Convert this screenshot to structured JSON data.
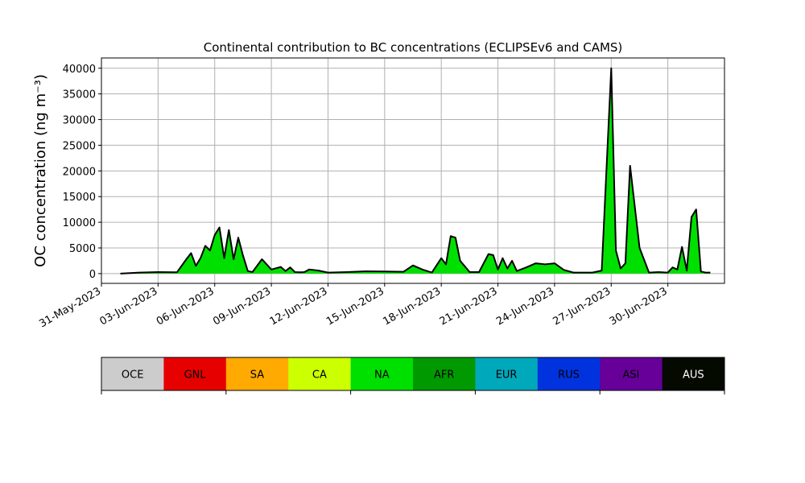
{
  "chart_data": {
    "type": "area",
    "title": "Continental contribution to BC concentrations (ECLIPSEv6 and CAMS)",
    "ylabel": "OC concentration (ng m⁻³)",
    "xlabel": "",
    "ylim": [
      -1900,
      42000
    ],
    "xlim": [
      "2023-05-31",
      "2023-07-03"
    ],
    "yticks": [
      0,
      5000,
      10000,
      15000,
      20000,
      25000,
      30000,
      35000,
      40000
    ],
    "xticks": [
      "31-May-2023",
      "03-Jun-2023",
      "06-Jun-2023",
      "09-Jun-2023",
      "12-Jun-2023",
      "15-Jun-2023",
      "18-Jun-2023",
      "21-Jun-2023",
      "24-Jun-2023",
      "27-Jun-2023",
      "30-Jun-2023"
    ],
    "grid": true,
    "stacked": true,
    "series": [
      {
        "name": "NA",
        "color": "#00e000",
        "x": [
          "2023-06-01",
          "2023-06-02",
          "2023-06-03",
          "2023-06-04",
          "2023-06-04T12",
          "2023-06-04T18",
          "2023-06-05",
          "2023-06-05T06",
          "2023-06-05T12",
          "2023-06-05T18",
          "2023-06-06",
          "2023-06-06T06",
          "2023-06-06T12",
          "2023-06-06T18",
          "2023-06-07",
          "2023-06-07T06",
          "2023-06-07T12",
          "2023-06-07T18",
          "2023-06-08",
          "2023-06-08T12",
          "2023-06-09",
          "2023-06-09T12",
          "2023-06-09T18",
          "2023-06-10",
          "2023-06-10T06",
          "2023-06-10T12",
          "2023-06-10T18",
          "2023-06-11",
          "2023-06-11T12",
          "2023-06-12",
          "2023-06-13",
          "2023-06-14",
          "2023-06-15",
          "2023-06-16",
          "2023-06-16T12",
          "2023-06-17",
          "2023-06-17T12",
          "2023-06-18",
          "2023-06-18T06",
          "2023-06-18T12",
          "2023-06-18T18",
          "2023-06-19",
          "2023-06-19T12",
          "2023-06-20",
          "2023-06-20T12",
          "2023-06-20T18",
          "2023-06-21",
          "2023-06-21T06",
          "2023-06-21T12",
          "2023-06-21T18",
          "2023-06-22",
          "2023-06-22T12",
          "2023-06-23",
          "2023-06-23T12",
          "2023-06-24",
          "2023-06-24T12",
          "2023-06-25",
          "2023-06-26",
          "2023-06-26T12",
          "2023-06-27",
          "2023-06-27T06",
          "2023-06-27T12",
          "2023-06-27T18",
          "2023-06-28",
          "2023-06-28T12",
          "2023-06-29",
          "2023-06-29T12",
          "2023-06-30",
          "2023-06-30T06",
          "2023-06-30T12",
          "2023-06-30T18",
          "2023-07-01",
          "2023-07-01T06",
          "2023-07-01T12",
          "2023-07-01T18",
          "2023-07-02",
          "2023-07-02T06"
        ],
        "values": [
          0,
          200,
          300,
          250,
          2800,
          4000,
          1500,
          3000,
          5400,
          4500,
          7500,
          9000,
          3000,
          8500,
          2800,
          7000,
          3500,
          500,
          300,
          2800,
          800,
          1300,
          500,
          1200,
          300,
          250,
          300,
          800,
          600,
          200,
          300,
          450,
          400,
          350,
          1600,
          800,
          200,
          3000,
          1800,
          7300,
          7000,
          2500,
          300,
          300,
          3800,
          3600,
          800,
          3000,
          1000,
          2500,
          500,
          1200,
          2000,
          1800,
          2000,
          700,
          200,
          200,
          600,
          40000,
          4500,
          1000,
          2000,
          21000,
          5000,
          200,
          300,
          200,
          1200,
          800,
          5200,
          600,
          11000,
          12500,
          400,
          200,
          200
        ]
      }
    ],
    "legend": {
      "placement": "bottom",
      "items": [
        {
          "label": "OCE",
          "color": "#cccccc",
          "text_color": "#000000"
        },
        {
          "label": "GNL",
          "color": "#e60000",
          "text_color": "#000000"
        },
        {
          "label": "SA",
          "color": "#ffaa00",
          "text_color": "#000000"
        },
        {
          "label": "CA",
          "color": "#ccff00",
          "text_color": "#000000"
        },
        {
          "label": "NA",
          "color": "#00e000",
          "text_color": "#000000"
        },
        {
          "label": "AFR",
          "color": "#009900",
          "text_color": "#000000"
        },
        {
          "label": "EUR",
          "color": "#00a8bb",
          "text_color": "#000000"
        },
        {
          "label": "RUS",
          "color": "#0033dd",
          "text_color": "#000000"
        },
        {
          "label": "ASI",
          "color": "#660099",
          "text_color": "#000000"
        },
        {
          "label": "AUS",
          "color": "#050a00",
          "text_color": "#ffffff"
        }
      ]
    }
  }
}
